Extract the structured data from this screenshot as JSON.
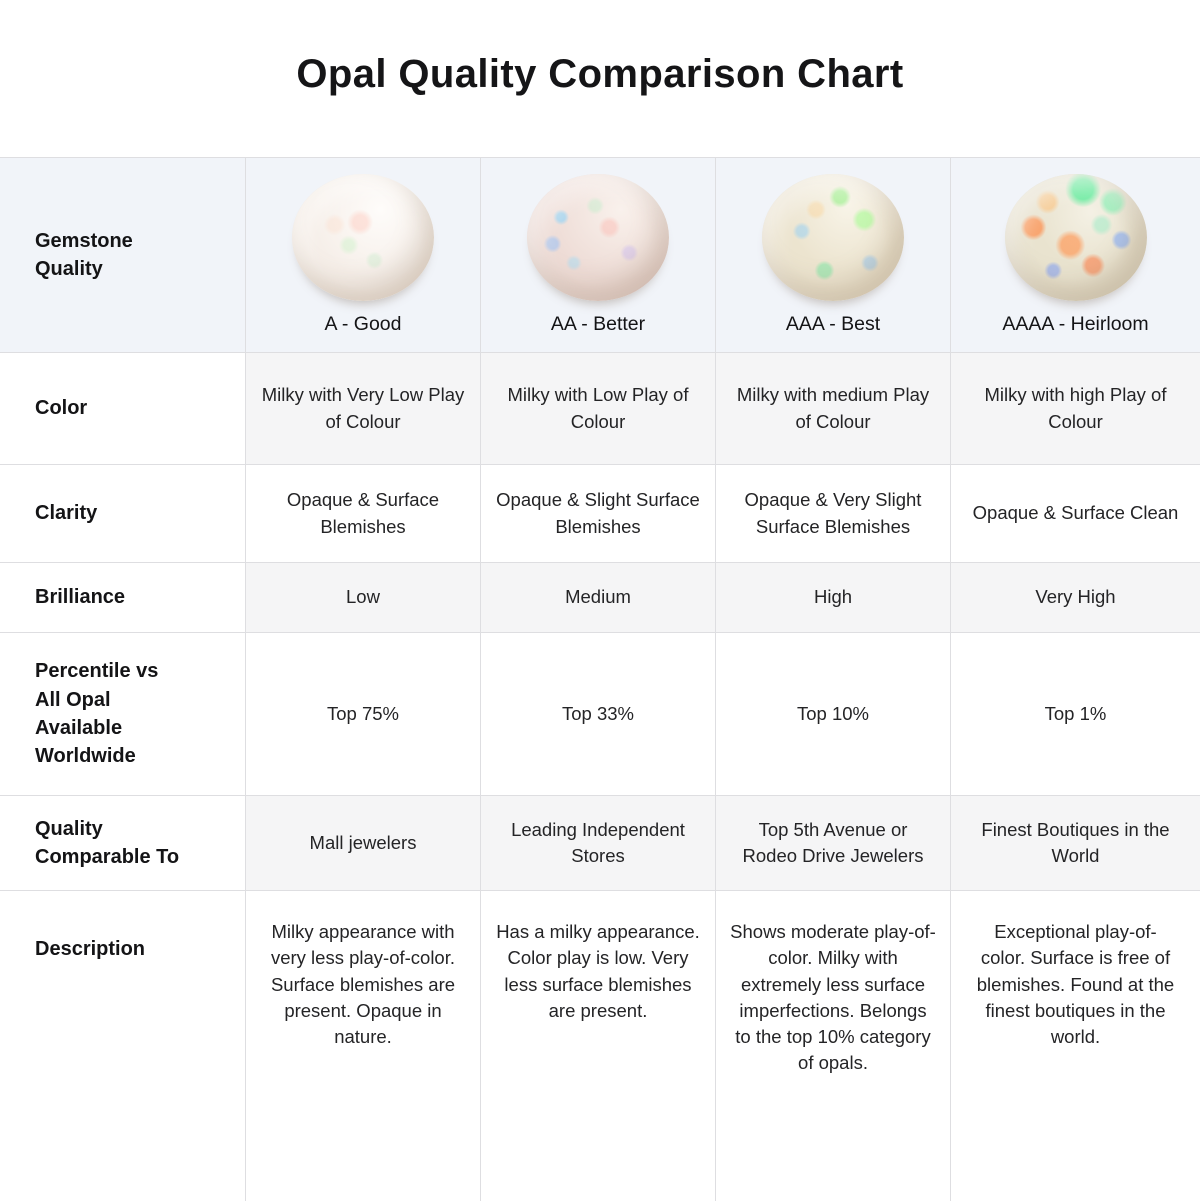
{
  "chart_data": {
    "type": "table",
    "title": "Opal Quality Comparison Chart",
    "corner_label": "Gemstone Quality",
    "columns": [
      {
        "grade_label": "A - Good",
        "opal_icon": "opal-a-good"
      },
      {
        "grade_label": "AA - Better",
        "opal_icon": "opal-aa-better"
      },
      {
        "grade_label": "AAA - Best",
        "opal_icon": "opal-aaa-best"
      },
      {
        "grade_label": "AAAA - Heirloom",
        "opal_icon": "opal-aaaa-heirloom"
      }
    ],
    "rows": [
      {
        "label": "Color",
        "values": [
          "Milky with Very Low Play of Colour",
          "Milky with Low Play of Colour",
          "Milky with medium Play of Colour",
          "Milky with high Play of Colour"
        ]
      },
      {
        "label": "Clarity",
        "values": [
          "Opaque & Surface Blemishes",
          "Opaque & Slight Surface Blemishes",
          "Opaque & Very Slight Surface Blemishes",
          "Opaque & Surface Clean"
        ]
      },
      {
        "label": "Brilliance",
        "values": [
          "Low",
          "Medium",
          "High",
          "Very High"
        ]
      },
      {
        "label": "Percentile vs All Opal Available Worldwide",
        "values": [
          "Top 75%",
          "Top 33%",
          "Top 10%",
          "Top 1%"
        ]
      },
      {
        "label": "Quality Comparable To",
        "values": [
          "Mall jewelers",
          "Leading Independent Stores",
          "Top 5th Avenue or Rodeo Drive Jewelers",
          "Finest Boutiques in the World"
        ]
      },
      {
        "label": "Description",
        "values": [
          "Milky appearance with very less play-of-color. Surface blemishes are present. Opaque in nature.",
          "Has a milky appearance. Color play is low. Very less surface blemishes are present.",
          "Shows moderate play-of-color. Milky with extremely less surface imperfections. Belongs to the top 10% category of opals.",
          "Exceptional play-of-color. Surface is free of blemishes. Found at the finest boutiques in the world."
        ]
      }
    ],
    "layout_hints": {
      "header_row_bg": "#f1f4f9",
      "alt_row_bg": "#f5f5f6",
      "border_color": "#dedee1",
      "title_color": "#151517"
    }
  }
}
